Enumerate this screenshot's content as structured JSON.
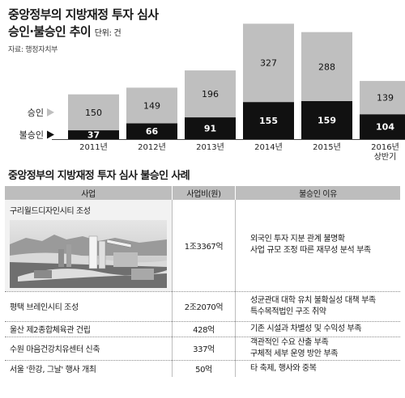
{
  "header": {
    "title_line1": "중앙정부의 지방재정 투자 심사",
    "title_line2": "승인·불승인 추이",
    "unit": "단위: 건",
    "source": "자료: 행정자치부"
  },
  "chart_data": {
    "type": "bar",
    "stacked": true,
    "categories": [
      "2011년",
      "2012년",
      "2013년",
      "2014년",
      "2015년",
      "2016년\n상반기"
    ],
    "series": [
      {
        "name": "불승인",
        "values": [
          37,
          66,
          91,
          155,
          159,
          104
        ],
        "color": "#111111"
      },
      {
        "name": "승인",
        "values": [
          150,
          149,
          196,
          327,
          288,
          139
        ],
        "color": "#bfbfbf"
      }
    ],
    "legend": [
      "승인",
      "불승인"
    ],
    "legend_position": "left",
    "grid": false
  },
  "table": {
    "title": "중앙정부의 지방재정 투자 심사 불승인 사례",
    "headers": [
      "사업",
      "사업비(원)",
      "불승인 이유"
    ],
    "rows": [
      {
        "name": "구리월드디자인시티 조성",
        "cost": "1조3367억",
        "reason": [
          "외국인 투자 지분 관계 불명확",
          "사업 규모 조정 따른 재무성 분석 부족"
        ]
      },
      {
        "name": "평택 브레인시티 조성",
        "cost": "2조2070억",
        "reason": [
          "성균관대 대학 유치 불확실성 대책 부족",
          "특수목적법인 구조 취약"
        ]
      },
      {
        "name": "울산 제2종합체육관 건립",
        "cost": "428억",
        "reason": [
          "기존 시설과 차별성 및 수익성 부족"
        ]
      },
      {
        "name": "수원 마음건강치유센터 신축",
        "cost": "337억",
        "reason": [
          "객관적인 수요 산출 부족",
          "구체적 세부 운영 방안 부족"
        ]
      },
      {
        "name": "서울 '한강, 그날' 행사 개최",
        "cost": "50억",
        "reason": [
          "타 축제, 행사와 중복"
        ]
      }
    ]
  }
}
